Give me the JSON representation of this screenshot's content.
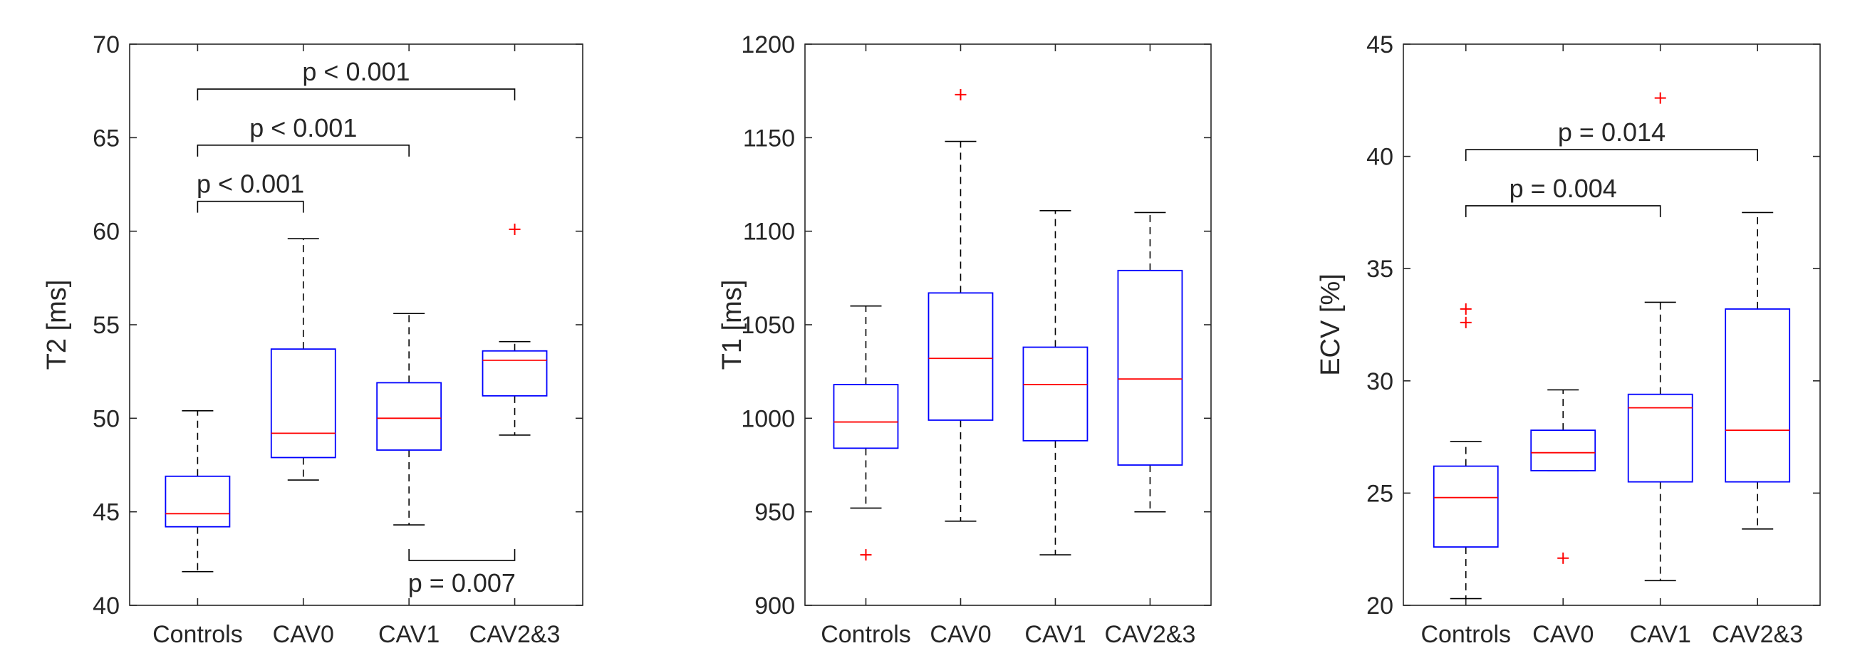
{
  "colors": {
    "box": "#0000ff",
    "median": "#ff0000",
    "outlier": "#ff0000",
    "whisker": "#000000",
    "axis": "#262626"
  },
  "chart_data": [
    {
      "type": "box",
      "ylabel": "T2 [ms]",
      "ylim": [
        40,
        70
      ],
      "yticks": [
        "40",
        "45",
        "50",
        "55",
        "60",
        "65",
        "70"
      ],
      "yticks_values": [
        40,
        45,
        50,
        55,
        60,
        65,
        70
      ],
      "categories": [
        "Controls",
        "CAV0",
        "CAV1",
        "CAV2&3"
      ],
      "boxes": [
        {
          "min": 41.8,
          "q1": 44.2,
          "median": 44.9,
          "q3": 46.9,
          "max": 50.4,
          "outliers": []
        },
        {
          "min": 46.7,
          "q1": 47.9,
          "median": 49.2,
          "q3": 53.7,
          "max": 59.6,
          "outliers": []
        },
        {
          "min": 44.3,
          "q1": 48.3,
          "median": 50.0,
          "q3": 51.9,
          "max": 55.6,
          "outliers": []
        },
        {
          "min": 49.1,
          "q1": 51.2,
          "median": 53.1,
          "q3": 53.6,
          "max": 54.1,
          "outliers": [
            60.1
          ]
        }
      ],
      "annotations": [
        {
          "from": 0,
          "to": 3,
          "y": 67.6,
          "text": "p < 0.001",
          "side": "above"
        },
        {
          "from": 0,
          "to": 2,
          "y": 64.6,
          "text": "p < 0.001",
          "side": "above"
        },
        {
          "from": 0,
          "to": 1,
          "y": 61.6,
          "text": "p < 0.001",
          "side": "above"
        },
        {
          "from": 2,
          "to": 3,
          "y": 42.4,
          "text": "p = 0.007",
          "side": "below"
        }
      ]
    },
    {
      "type": "box",
      "ylabel": "T1 [ms]",
      "ylim": [
        900,
        1200
      ],
      "yticks": [
        "900",
        "950",
        "1000",
        "1050",
        "1100",
        "1150",
        "1200"
      ],
      "yticks_values": [
        900,
        950,
        1000,
        1050,
        1100,
        1150,
        1200
      ],
      "categories": [
        "Controls",
        "CAV0",
        "CAV1",
        "CAV2&3"
      ],
      "boxes": [
        {
          "min": 952,
          "q1": 984,
          "median": 998,
          "q3": 1018,
          "max": 1060,
          "outliers": [
            927
          ]
        },
        {
          "min": 945,
          "q1": 999,
          "median": 1032,
          "q3": 1067,
          "max": 1148,
          "outliers": [
            1173
          ]
        },
        {
          "min": 927,
          "q1": 988,
          "median": 1018,
          "q3": 1038,
          "max": 1111,
          "outliers": []
        },
        {
          "min": 950,
          "q1": 975,
          "median": 1021,
          "q3": 1079,
          "max": 1110,
          "outliers": []
        }
      ],
      "annotations": []
    },
    {
      "type": "box",
      "ylabel": "ECV [%]",
      "ylim": [
        20,
        45
      ],
      "yticks": [
        "20",
        "25",
        "30",
        "35",
        "40",
        "45"
      ],
      "yticks_values": [
        20,
        25,
        30,
        35,
        40,
        45
      ],
      "categories": [
        "Controls",
        "CAV0",
        "CAV1",
        "CAV2&3"
      ],
      "boxes": [
        {
          "min": 20.3,
          "q1": 22.6,
          "median": 24.8,
          "q3": 26.2,
          "max": 27.3,
          "outliers": [
            33.2,
            32.6
          ]
        },
        {
          "min": 26.0,
          "q1": 26.0,
          "median": 26.8,
          "q3": 27.8,
          "max": 29.6,
          "outliers": [
            22.1
          ]
        },
        {
          "min": 21.1,
          "q1": 25.5,
          "median": 28.8,
          "q3": 29.4,
          "max": 33.5,
          "outliers": [
            42.6
          ]
        },
        {
          "min": 23.4,
          "q1": 25.5,
          "median": 27.8,
          "q3": 33.2,
          "max": 37.5,
          "outliers": []
        }
      ],
      "annotations": [
        {
          "from": 0,
          "to": 3,
          "y": 40.3,
          "text": "p = 0.014",
          "side": "above"
        },
        {
          "from": 0,
          "to": 2,
          "y": 37.8,
          "text": "p = 0.004",
          "side": "above"
        }
      ]
    }
  ]
}
